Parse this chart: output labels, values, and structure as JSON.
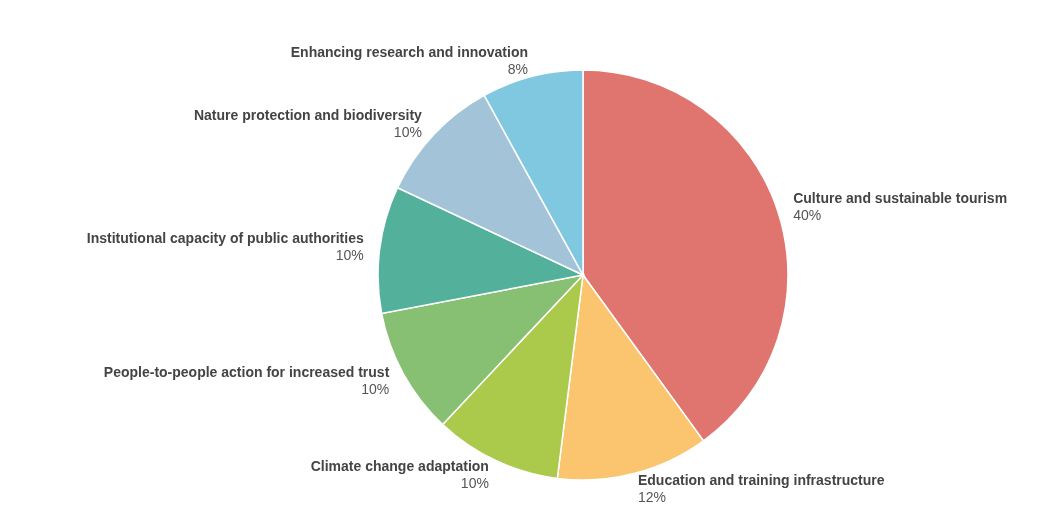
{
  "chart_data": {
    "type": "pie",
    "categories": [
      "Culture and sustainable tourism",
      "Education and training infrastructure",
      "Climate change adaptation",
      "People-to-people action for increased trust",
      "Institutional capacity of public authorities",
      "Nature protection and biodiversity",
      "Enhancing research and innovation"
    ],
    "values": [
      40,
      12,
      10,
      10,
      10,
      10,
      8
    ],
    "value_labels": [
      "40%",
      "12%",
      "10%",
      "10%",
      "10%",
      "10%",
      "8%"
    ],
    "colors": [
      "#e07570",
      "#fbc56f",
      "#abc94a",
      "#88c073",
      "#53b19b",
      "#a3c4d8",
      "#80c8e0"
    ],
    "legend": false
  }
}
